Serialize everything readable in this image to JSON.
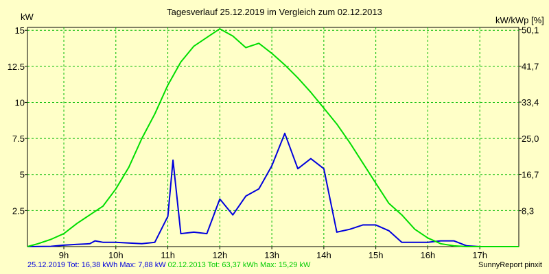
{
  "chart_data": {
    "type": "line",
    "title": "Tagesverlauf 25.12.2019 im Vergleich zum 02.12.2013",
    "ylabel_left": "kW",
    "ylabel_right": "kW/kWp [%]",
    "ylim": [
      0,
      15.2
    ],
    "yticks_left": [
      {
        "value": 2.5,
        "label": "2.5"
      },
      {
        "value": 5,
        "label": "5"
      },
      {
        "value": 7.5,
        "label": "7.5"
      },
      {
        "value": 10,
        "label": "10"
      },
      {
        "value": 12.5,
        "label": "12.5"
      },
      {
        "value": 15,
        "label": "15"
      }
    ],
    "yticks_right": [
      {
        "value": 2.49,
        "label": "8,3"
      },
      {
        "value": 5.01,
        "label": "16,7"
      },
      {
        "value": 7.5,
        "label": "25,0"
      },
      {
        "value": 10.02,
        "label": "33,4"
      },
      {
        "value": 12.51,
        "label": "41,7"
      },
      {
        "value": 15.03,
        "label": "50,1"
      }
    ],
    "xlim": [
      8.3,
      17.75
    ],
    "xticks": [
      {
        "value": 9,
        "label": "9h"
      },
      {
        "value": 10,
        "label": "10h"
      },
      {
        "value": 11,
        "label": "11h"
      },
      {
        "value": 12,
        "label": "12h"
      },
      {
        "value": 13,
        "label": "13h"
      },
      {
        "value": 14,
        "label": "14h"
      },
      {
        "value": 15,
        "label": "15h"
      },
      {
        "value": 16,
        "label": "16h"
      },
      {
        "value": 17,
        "label": "17h"
      }
    ],
    "grid": true,
    "series": [
      {
        "name": "25.12.2019",
        "color": "#0000dd",
        "points": [
          [
            8.3,
            0.0
          ],
          [
            8.75,
            0.02
          ],
          [
            9.0,
            0.1
          ],
          [
            9.25,
            0.15
          ],
          [
            9.5,
            0.2
          ],
          [
            9.6,
            0.4
          ],
          [
            9.75,
            0.3
          ],
          [
            10.0,
            0.3
          ],
          [
            10.25,
            0.25
          ],
          [
            10.5,
            0.2
          ],
          [
            10.75,
            0.3
          ],
          [
            11.0,
            2.1
          ],
          [
            11.1,
            6.0
          ],
          [
            11.25,
            0.9
          ],
          [
            11.5,
            1.0
          ],
          [
            11.75,
            0.9
          ],
          [
            12.0,
            3.3
          ],
          [
            12.25,
            2.2
          ],
          [
            12.5,
            3.5
          ],
          [
            12.75,
            4.0
          ],
          [
            13.0,
            5.6
          ],
          [
            13.25,
            7.85
          ],
          [
            13.5,
            5.4
          ],
          [
            13.75,
            6.1
          ],
          [
            14.0,
            5.4
          ],
          [
            14.25,
            1.0
          ],
          [
            14.5,
            1.2
          ],
          [
            14.75,
            1.5
          ],
          [
            15.0,
            1.5
          ],
          [
            15.25,
            1.1
          ],
          [
            15.5,
            0.3
          ],
          [
            15.75,
            0.3
          ],
          [
            16.0,
            0.3
          ],
          [
            16.25,
            0.4
          ],
          [
            16.5,
            0.4
          ],
          [
            16.75,
            0.05
          ],
          [
            17.0,
            0.0
          ],
          [
            17.75,
            0.0
          ]
        ]
      },
      {
        "name": "02.12.2013",
        "color": "#00dd00",
        "points": [
          [
            8.3,
            0.0
          ],
          [
            8.5,
            0.2
          ],
          [
            8.75,
            0.5
          ],
          [
            9.0,
            0.9
          ],
          [
            9.25,
            1.6
          ],
          [
            9.5,
            2.2
          ],
          [
            9.75,
            2.8
          ],
          [
            10.0,
            4.0
          ],
          [
            10.25,
            5.5
          ],
          [
            10.5,
            7.5
          ],
          [
            10.75,
            9.2
          ],
          [
            11.0,
            11.2
          ],
          [
            11.25,
            12.8
          ],
          [
            11.5,
            13.9
          ],
          [
            11.75,
            14.5
          ],
          [
            12.0,
            15.1
          ],
          [
            12.25,
            14.6
          ],
          [
            12.5,
            13.8
          ],
          [
            12.75,
            14.1
          ],
          [
            13.0,
            13.4
          ],
          [
            13.25,
            12.6
          ],
          [
            13.5,
            11.7
          ],
          [
            13.75,
            10.7
          ],
          [
            14.0,
            9.6
          ],
          [
            14.25,
            8.5
          ],
          [
            14.5,
            7.2
          ],
          [
            14.75,
            5.8
          ],
          [
            15.0,
            4.4
          ],
          [
            15.25,
            3.0
          ],
          [
            15.5,
            2.2
          ],
          [
            15.75,
            1.2
          ],
          [
            16.0,
            0.6
          ],
          [
            16.25,
            0.2
          ],
          [
            16.5,
            0.05
          ],
          [
            16.75,
            0.0
          ],
          [
            17.75,
            0.0
          ]
        ]
      }
    ]
  },
  "footer": {
    "blue_text": "25.12.2019 Tot: 16,38 kWh Max: 7,88 kW",
    "green_text": "02.12.2013 Tot: 63,37 kWh Max: 15,29 kW",
    "brand_text": "SunnyReport pinxit"
  }
}
